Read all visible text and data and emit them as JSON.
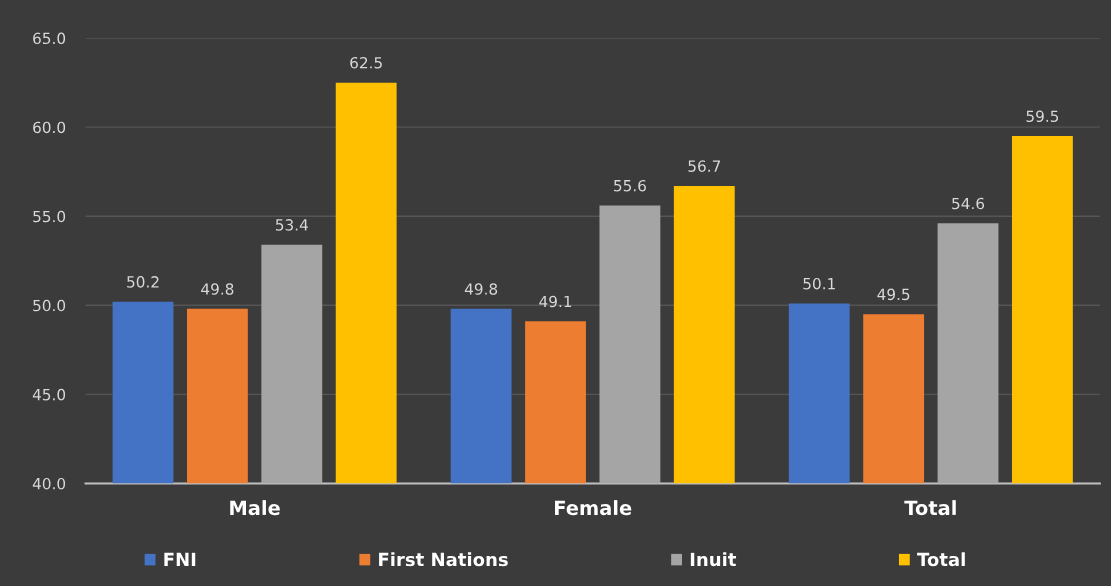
{
  "chart_data": {
    "type": "bar",
    "categories": [
      "Male",
      "Female",
      "Total"
    ],
    "series": [
      {
        "name": "FNI",
        "color": "#4472c4",
        "values": [
          50.2,
          49.8,
          50.1
        ]
      },
      {
        "name": "First Nations",
        "color": "#ed7d31",
        "values": [
          49.8,
          49.1,
          49.5
        ]
      },
      {
        "name": "Inuit",
        "color": "#a5a5a5",
        "values": [
          53.4,
          55.6,
          54.6
        ]
      },
      {
        "name": "Total",
        "color": "#ffc000",
        "values": [
          62.5,
          56.7,
          59.5
        ]
      }
    ],
    "ylim": [
      40,
      65
    ],
    "yticks": [
      {
        "value": 40,
        "label": "40.0"
      },
      {
        "value": 45,
        "label": "45.0"
      },
      {
        "value": 50,
        "label": "50.0"
      },
      {
        "value": 55,
        "label": "55.0"
      },
      {
        "value": 60,
        "label": "60.0"
      },
      {
        "value": 65,
        "label": "65.0"
      }
    ],
    "grid": "y",
    "legend": "bottom",
    "data_labels": true
  }
}
